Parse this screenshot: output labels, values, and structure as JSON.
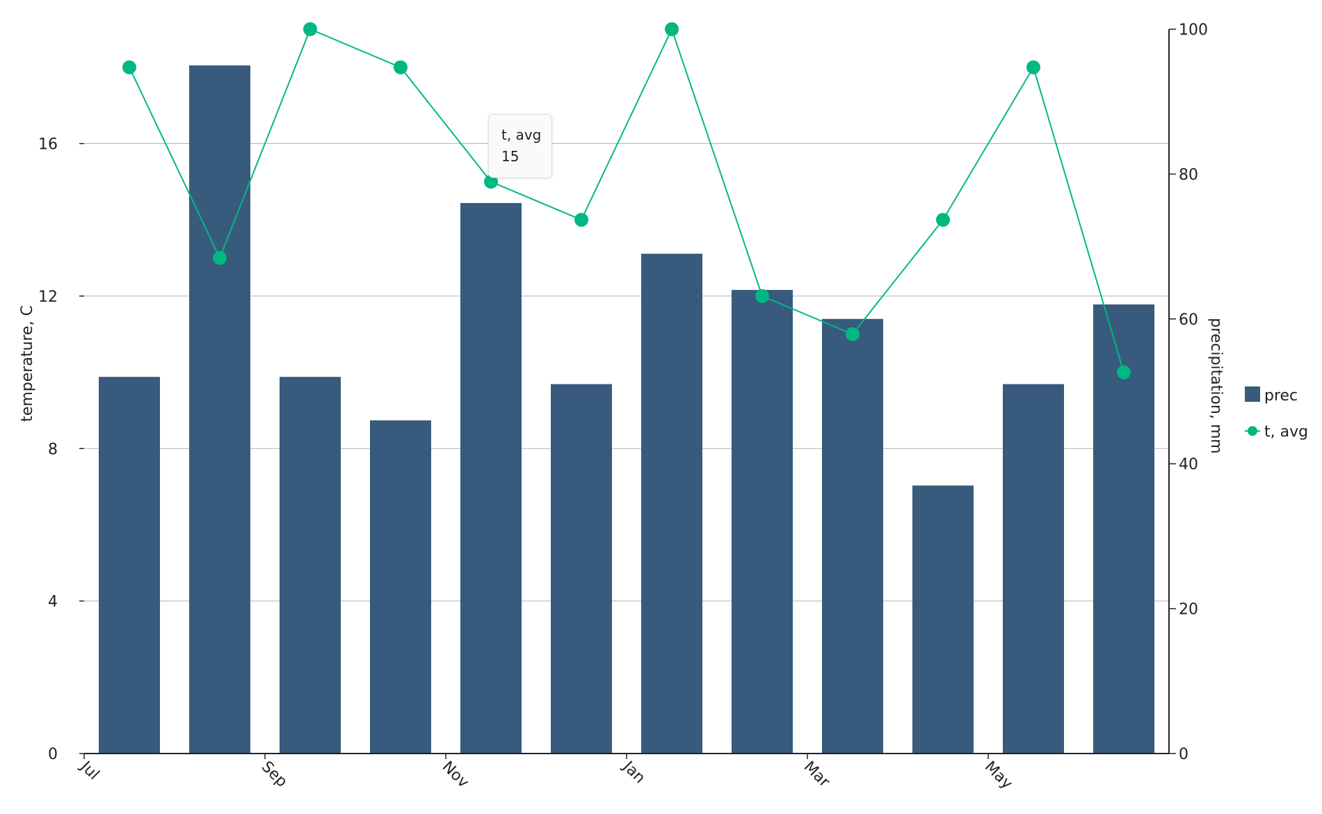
{
  "chart_data": {
    "type": "bar",
    "x_tick_labels": [
      "Jul",
      "Sep",
      "Nov",
      "Jan",
      "Mar",
      "May"
    ],
    "ylabel_left": "temperature, C",
    "ylabel_right": "precipitation, mm",
    "left_axis": {
      "ylim": [
        0,
        19
      ],
      "ticks": [
        0,
        4,
        8,
        12,
        16
      ]
    },
    "right_axis": {
      "ylim": [
        0,
        100
      ],
      "ticks": [
        0,
        20,
        40,
        60,
        80,
        100
      ]
    },
    "grid": "horizontal",
    "legend_placement": "right",
    "series": [
      {
        "name": "prec",
        "type": "bar",
        "axis": "right",
        "color": "#385a7c",
        "values": [
          52,
          95,
          52,
          46,
          76,
          51,
          69,
          64,
          60,
          37,
          51,
          62
        ]
      },
      {
        "name": "t, avg",
        "type": "line",
        "axis": "left",
        "color": "#00b884",
        "values": [
          18,
          13,
          19,
          18,
          15,
          14,
          19,
          12,
          11,
          14,
          18,
          10
        ]
      }
    ]
  },
  "tooltip": {
    "series_name": "t, avg",
    "value": "15"
  },
  "legend": {
    "prec_label": "prec",
    "tavg_label": "t, avg"
  }
}
